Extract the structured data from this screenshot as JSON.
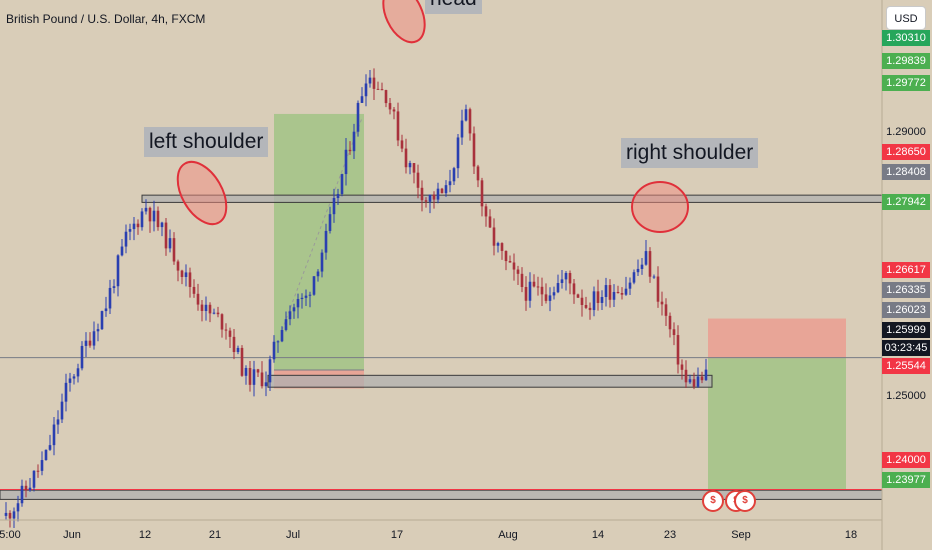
{
  "header": {
    "title": "British Pound / U.S. Dollar, 4h, FXCM",
    "currency_button": "USD"
  },
  "price_scale": {
    "plain_ticks": [
      "1.29000",
      "1.25000"
    ],
    "labels": [
      {
        "text": "1.30310",
        "color": "#26a65b"
      },
      {
        "text": "1.29839",
        "color": "#4caf50"
      },
      {
        "text": "1.29772",
        "color": "#4caf50"
      },
      {
        "text": "1.28650",
        "color": "#f23645"
      },
      {
        "text": "1.28408",
        "color": "#787b86"
      },
      {
        "text": "1.27942",
        "color": "#4caf50"
      },
      {
        "text": "1.26617",
        "color": "#f23645"
      },
      {
        "text": "1.26335",
        "color": "#787b86"
      },
      {
        "text": "1.26023",
        "color": "#787b86"
      },
      {
        "text": "1.25999",
        "color": "#131722"
      },
      {
        "text": "03:23:45",
        "color": "#131722"
      },
      {
        "text": "1.25544",
        "color": "#f23645"
      },
      {
        "text": "1.24000",
        "color": "#f23645"
      },
      {
        "text": "1.23977",
        "color": "#4caf50"
      }
    ]
  },
  "time_axis": [
    "5:00",
    "Jun",
    "12",
    "21",
    "Jul",
    "17",
    "Aug",
    "14",
    "23",
    "Sep",
    "18"
  ],
  "annotations": {
    "left_shoulder": "left shoulder",
    "head": "head",
    "right_shoulder": "right shoulder"
  },
  "chart_data": {
    "type": "candlestick",
    "title": "British Pound / U.S. Dollar, 4h, FXCM",
    "symbol": "GBPUSD",
    "timeframe": "4h",
    "last_price": 1.25999,
    "countdown": "03:23:45",
    "x_ticks": [
      "5:00",
      "Jun",
      "12",
      "21",
      "Jul",
      "17",
      "Aug",
      "14",
      "23",
      "Sep",
      "18"
    ],
    "approx_close_path": [
      1.236,
      1.24,
      1.245,
      1.255,
      1.262,
      1.268,
      1.278,
      1.283,
      1.278,
      1.272,
      1.267,
      1.265,
      1.257,
      1.257,
      1.267,
      1.269,
      1.278,
      1.29,
      1.303,
      1.3,
      1.29,
      1.284,
      1.285,
      1.297,
      1.28,
      1.274,
      1.27,
      1.27,
      1.272,
      1.268,
      1.27,
      1.271,
      1.275,
      1.266,
      1.256,
      1.257
    ],
    "zones": [
      {
        "name": "resistance",
        "from": 1.2835,
        "to": 1.2846
      },
      {
        "name": "support",
        "from": 1.2555,
        "to": 1.2573
      },
      {
        "name": "target",
        "from": 1.2385,
        "to": 1.2399
      }
    ],
    "levels": {
      "target_line": 1.24
    },
    "trades": [
      {
        "type": "long",
        "entry": 1.2581,
        "stop": 1.2553,
        "target": 1.2969
      },
      {
        "type": "short",
        "entry": 1.2599,
        "stop": 1.2659,
        "target": 1.24
      }
    ]
  },
  "colors": {
    "background": "#d9cdb8",
    "up": "#2a3fb0",
    "down": "#a8313c",
    "profit_zone": "#8bbf6f",
    "loss_zone": "#f28b80"
  }
}
